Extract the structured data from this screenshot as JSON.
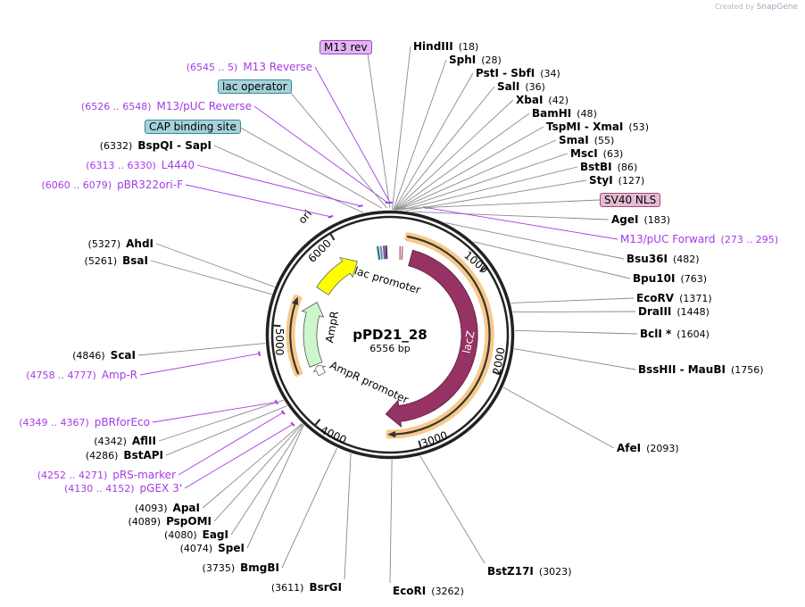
{
  "watermark": {
    "prefix": "Created by",
    "brand": "SnapGene"
  },
  "plasmid": {
    "name": "pPD21_28",
    "length": "6556 bp",
    "total_bp": 6556
  },
  "ticks": [
    "1000",
    "2000",
    "3000",
    "4000",
    "5000",
    "6000"
  ],
  "features": {
    "ori": "ori",
    "lac_promoter": "lac promoter",
    "ampr": "AmpR",
    "ampr_promoter": "AmpR promoter",
    "lacz": "lacZ"
  },
  "feature_boxes": [
    {
      "label": "M13 rev",
      "fill": "#e2b6f2",
      "border": "#a046d2"
    },
    {
      "label": "lac operator",
      "fill": "#a9d1d9",
      "border": "#2f8a99"
    },
    {
      "label": "CAP binding site",
      "fill": "#a9d1d9",
      "border": "#2f8a99"
    },
    {
      "label": "SV40 NLS",
      "fill": "#e2bcd2",
      "border": "#a4486e"
    }
  ],
  "enzymes": [
    {
      "name": "HindIII",
      "pos": "18"
    },
    {
      "name": "SphI",
      "pos": "28"
    },
    {
      "name": "PstI  - SbfI",
      "pos": "34"
    },
    {
      "name": "SalI",
      "pos": "36"
    },
    {
      "name": "XbaI",
      "pos": "42"
    },
    {
      "name": "BamHI",
      "pos": "48"
    },
    {
      "name": "TspMI  - XmaI",
      "pos": "53"
    },
    {
      "name": "SmaI",
      "pos": "55"
    },
    {
      "name": "MscI",
      "pos": "63"
    },
    {
      "name": "BstBI",
      "pos": "86"
    },
    {
      "name": "StyI",
      "pos": "127"
    },
    {
      "name": "AgeI",
      "pos": "183"
    },
    {
      "name": "Bsu36I",
      "pos": "482"
    },
    {
      "name": "Bpu10I",
      "pos": "763"
    },
    {
      "name": "EcoRV",
      "pos": "1371"
    },
    {
      "name": "DraIII",
      "pos": "1448"
    },
    {
      "name": "BclI *",
      "pos": "1604"
    },
    {
      "name": "BssHII  - MauBI",
      "pos": "1756"
    },
    {
      "name": "AfeI",
      "pos": "2093"
    },
    {
      "name": "BstZ17I",
      "pos": "3023"
    },
    {
      "name": "EcoRI",
      "pos": "3262"
    },
    {
      "name": "BsrGI",
      "pos": "3611"
    },
    {
      "name": "BmgBI",
      "pos": "3735"
    },
    {
      "name": "SpeI",
      "pos": "4074"
    },
    {
      "name": "EagI",
      "pos": "4080"
    },
    {
      "name": "PspOMI",
      "pos": "4089"
    },
    {
      "name": "ApaI",
      "pos": "4093"
    },
    {
      "name": "BstAPI",
      "pos": "4286"
    },
    {
      "name": "AflII",
      "pos": "4342"
    },
    {
      "name": "ScaI",
      "pos": "4846"
    },
    {
      "name": "BsaI",
      "pos": "5261"
    },
    {
      "name": "AhdI",
      "pos": "5327"
    },
    {
      "name": "BspQI  - SapI",
      "pos": "6332"
    }
  ],
  "primers": [
    {
      "name": "M13 Reverse",
      "range": "6545 .. 5"
    },
    {
      "name": "M13/pUC Reverse",
      "range": "6526 .. 6548"
    },
    {
      "name": "L4440",
      "range": "6313 .. 6330"
    },
    {
      "name": "pBR322ori-F",
      "range": "6060 .. 6079"
    },
    {
      "name": "M13/pUC Forward",
      "range": "273 .. 295"
    },
    {
      "name": "Amp-R",
      "range": "4758 .. 4777"
    },
    {
      "name": "pBRforEco",
      "range": "4349 .. 4367"
    },
    {
      "name": "pRS-marker",
      "range": "4252 .. 4271"
    },
    {
      "name": "pGEX 3'",
      "range": "4130 .. 4152"
    }
  ],
  "colors": {
    "primer": "#a53be6",
    "lacz": "#963264",
    "orf": "#f7c98a",
    "ampr": "#ccf7cc",
    "ori": "#ffff00",
    "ring": "#222222"
  }
}
